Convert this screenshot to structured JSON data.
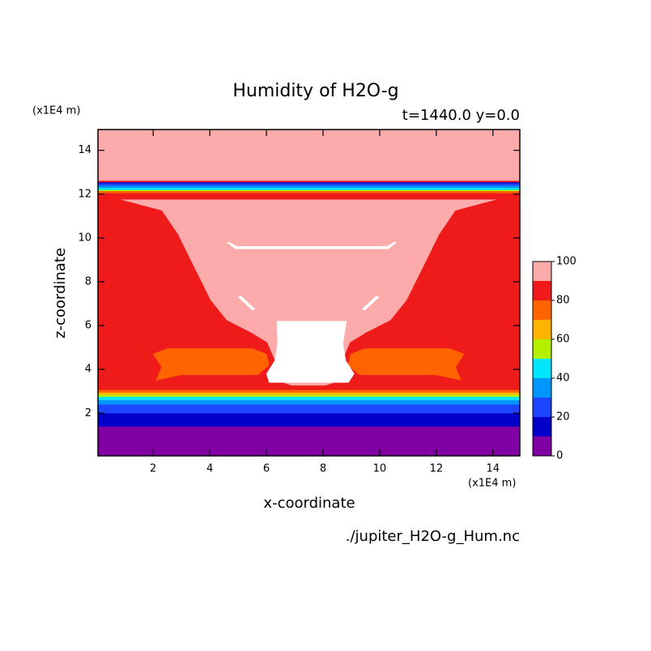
{
  "chart_data": {
    "type": "contour",
    "title": "Humidity of H2O-g",
    "subtitle": "t=1440.0 y=0.0",
    "x_label": "x-coordinate",
    "y_label": "z-coordinate",
    "x_unit": "(x1E4 m)",
    "y_unit": "(x1E4 m)",
    "footer": "./jupiter_H2O-g_Hum.nc",
    "xlim": [
      0.05,
      14.95
    ],
    "ylim": [
      0.05,
      14.95
    ],
    "xticks": [
      2,
      4,
      6,
      8,
      10,
      12,
      14
    ],
    "yticks": [
      2,
      4,
      6,
      8,
      10,
      12,
      14
    ],
    "levels": [
      0,
      10,
      20,
      30,
      40,
      50,
      60,
      70,
      80,
      90,
      100
    ],
    "colors": [
      "#8000a4",
      "#0000c8",
      "#1e46ff",
      "#0096ff",
      "#00e6ff",
      "#b4f000",
      "#ffb400",
      "#ff6400",
      "#ef1a1a",
      "#fcaaaa"
    ],
    "over_color": "#ffffff",
    "colorbar_ticks": [
      0,
      20,
      40,
      60,
      80,
      100
    ],
    "regions": [
      {
        "band": 8,
        "polygon": [
          [
            0.05,
            3.05
          ],
          [
            14.95,
            3.05
          ],
          [
            14.95,
            12.05
          ],
          [
            0.05,
            12.05
          ]
        ]
      },
      {
        "band": 7,
        "polygon": [
          [
            0.05,
            12.05
          ],
          [
            14.95,
            12.05
          ],
          [
            14.95,
            12.15
          ],
          [
            0.05,
            12.15
          ]
        ]
      },
      {
        "band": 5,
        "polygon": [
          [
            0.05,
            12.15
          ],
          [
            14.95,
            12.15
          ],
          [
            14.95,
            12.2
          ],
          [
            0.05,
            12.2
          ]
        ]
      },
      {
        "band": 4,
        "polygon": [
          [
            0.05,
            12.2
          ],
          [
            14.95,
            12.2
          ],
          [
            14.95,
            12.3
          ],
          [
            0.05,
            12.3
          ]
        ]
      },
      {
        "band": 3,
        "polygon": [
          [
            0.05,
            12.3
          ],
          [
            14.95,
            12.3
          ],
          [
            14.95,
            12.4
          ],
          [
            0.05,
            12.4
          ]
        ]
      },
      {
        "band": 2,
        "polygon": [
          [
            0.05,
            12.4
          ],
          [
            14.95,
            12.4
          ],
          [
            14.95,
            12.5
          ],
          [
            0.05,
            12.5
          ]
        ]
      },
      {
        "band": 1,
        "polygon": [
          [
            0.05,
            12.5
          ],
          [
            14.95,
            12.5
          ],
          [
            14.95,
            12.55
          ],
          [
            0.05,
            12.55
          ]
        ]
      },
      {
        "band": 8,
        "polygon": [
          [
            0.05,
            12.55
          ],
          [
            14.95,
            12.55
          ],
          [
            14.95,
            12.62
          ],
          [
            0.05,
            12.62
          ]
        ]
      },
      {
        "band": 9,
        "polygon": [
          [
            0.05,
            12.62
          ],
          [
            14.95,
            12.62
          ],
          [
            14.95,
            14.95
          ],
          [
            0.05,
            14.95
          ]
        ]
      },
      {
        "band": 9,
        "polygon": [
          [
            0.89,
            11.75
          ],
          [
            2.31,
            11.26
          ],
          [
            2.89,
            10.15
          ],
          [
            3.46,
            8.66
          ],
          [
            4.03,
            7.17
          ],
          [
            4.6,
            6.25
          ],
          [
            5.46,
            5.69
          ],
          [
            6.03,
            5.24
          ],
          [
            6.31,
            4.39
          ],
          [
            6.46,
            3.46
          ],
          [
            6.89,
            3.27
          ],
          [
            8.09,
            3.27
          ],
          [
            8.52,
            3.46
          ],
          [
            8.67,
            4.39
          ],
          [
            8.95,
            5.24
          ],
          [
            9.52,
            5.69
          ],
          [
            10.38,
            6.25
          ],
          [
            10.95,
            7.17
          ],
          [
            11.52,
            8.66
          ],
          [
            12.09,
            10.15
          ],
          [
            12.67,
            11.26
          ],
          [
            14.09,
            11.75
          ]
        ]
      },
      {
        "band": 7,
        "polygon": [
          [
            2.0,
            4.7
          ],
          [
            2.5,
            4.95
          ],
          [
            5.5,
            4.95
          ],
          [
            6.0,
            4.7
          ],
          [
            6.1,
            4.2
          ],
          [
            5.7,
            3.75
          ],
          [
            3.0,
            3.75
          ],
          [
            2.1,
            3.5
          ],
          [
            2.3,
            4.1
          ]
        ]
      },
      {
        "band": 7,
        "polygon": [
          [
            12.98,
            4.7
          ],
          [
            12.48,
            4.95
          ],
          [
            9.48,
            4.95
          ],
          [
            8.98,
            4.7
          ],
          [
            8.88,
            4.2
          ],
          [
            9.28,
            3.75
          ],
          [
            11.98,
            3.75
          ],
          [
            12.88,
            3.5
          ],
          [
            12.68,
            4.1
          ]
        ]
      },
      {
        "band": 10,
        "polygon": [
          [
            6.37,
            6.2
          ],
          [
            8.83,
            6.2
          ],
          [
            8.7,
            5.2
          ],
          [
            8.8,
            4.4
          ],
          [
            9.1,
            3.8
          ],
          [
            8.9,
            3.4
          ],
          [
            6.1,
            3.4
          ],
          [
            6.0,
            3.8
          ],
          [
            6.3,
            4.4
          ],
          [
            6.4,
            5.2
          ]
        ]
      },
      {
        "band": 10,
        "polygon": [
          [
            4.6,
            9.8
          ],
          [
            4.9,
            9.5
          ],
          [
            10.3,
            9.5
          ],
          [
            10.6,
            9.8
          ],
          [
            10.5,
            9.8
          ],
          [
            10.25,
            9.62
          ],
          [
            4.95,
            9.62
          ],
          [
            4.7,
            9.8
          ]
        ]
      },
      {
        "band": 10,
        "polygon": [
          [
            5.0,
            7.3
          ],
          [
            5.5,
            6.7
          ],
          [
            5.6,
            6.75
          ],
          [
            5.1,
            7.35
          ]
        ]
      },
      {
        "band": 10,
        "polygon": [
          [
            9.98,
            7.3
          ],
          [
            9.48,
            6.7
          ],
          [
            9.38,
            6.75
          ],
          [
            9.88,
            7.35
          ]
        ]
      },
      {
        "band": 0,
        "polygon": [
          [
            0.05,
            0.05
          ],
          [
            14.95,
            0.05
          ],
          [
            14.95,
            1.4
          ],
          [
            0.05,
            1.4
          ]
        ]
      },
      {
        "band": 1,
        "polygon": [
          [
            0.05,
            1.4
          ],
          [
            14.95,
            1.4
          ],
          [
            14.95,
            2.0
          ],
          [
            0.05,
            2.0
          ]
        ]
      },
      {
        "band": 2,
        "polygon": [
          [
            0.05,
            2.0
          ],
          [
            14.95,
            2.0
          ],
          [
            14.95,
            2.4
          ],
          [
            0.05,
            2.4
          ]
        ]
      },
      {
        "band": 3,
        "polygon": [
          [
            0.05,
            2.4
          ],
          [
            14.95,
            2.4
          ],
          [
            14.95,
            2.6
          ],
          [
            0.05,
            2.6
          ]
        ]
      },
      {
        "band": 4,
        "polygon": [
          [
            0.05,
            2.6
          ],
          [
            14.95,
            2.6
          ],
          [
            14.95,
            2.75
          ],
          [
            0.05,
            2.75
          ]
        ]
      },
      {
        "band": 5,
        "polygon": [
          [
            0.05,
            2.75
          ],
          [
            14.95,
            2.75
          ],
          [
            14.95,
            2.85
          ],
          [
            0.05,
            2.85
          ]
        ]
      },
      {
        "band": 6,
        "polygon": [
          [
            0.05,
            2.85
          ],
          [
            14.95,
            2.85
          ],
          [
            14.95,
            2.95
          ],
          [
            0.05,
            2.95
          ]
        ]
      },
      {
        "band": 7,
        "polygon": [
          [
            0.05,
            2.95
          ],
          [
            14.95,
            2.95
          ],
          [
            14.95,
            3.05
          ],
          [
            0.05,
            3.05
          ]
        ]
      }
    ]
  }
}
